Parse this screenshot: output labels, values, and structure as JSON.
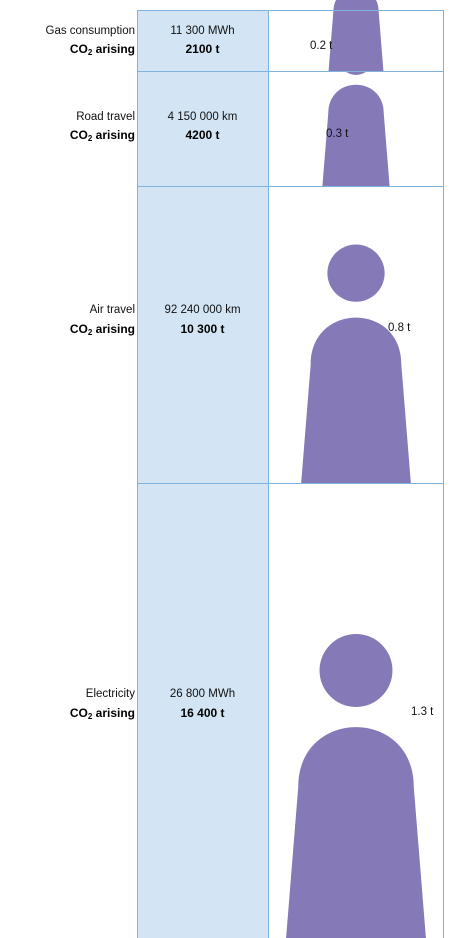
{
  "colors": {
    "panel_fill": "#d3e5f4",
    "grid_line": "#7fb3de",
    "person_fill": "#8579b8"
  },
  "chart_data": {
    "type": "pictogram",
    "co2_label_prefix": "CO",
    "co2_label_subscript": "2",
    "co2_label_suffix": "arising",
    "rows": [
      {
        "category": "Gas consumption",
        "amount": "11 300 MWh",
        "co2_total": "2100 t",
        "co2_total_t": 2100,
        "per_capita": "0.2 t",
        "per_capita_t": 0.2
      },
      {
        "category": "Road travel",
        "amount": "4 150 000 km",
        "co2_total": "4200 t",
        "co2_total_t": 4200,
        "per_capita": "0.3 t",
        "per_capita_t": 0.3
      },
      {
        "category": "Air travel",
        "amount": "92 240 000 km",
        "co2_total": "10 300 t",
        "co2_total_t": 10300,
        "per_capita": "0.8 t",
        "per_capita_t": 0.8
      },
      {
        "category": "Electricity",
        "amount": "26 800 MWh",
        "co2_total": "16 400 t",
        "co2_total_t": 16400,
        "per_capita": "1.3 t",
        "per_capita_t": 1.3
      }
    ]
  }
}
